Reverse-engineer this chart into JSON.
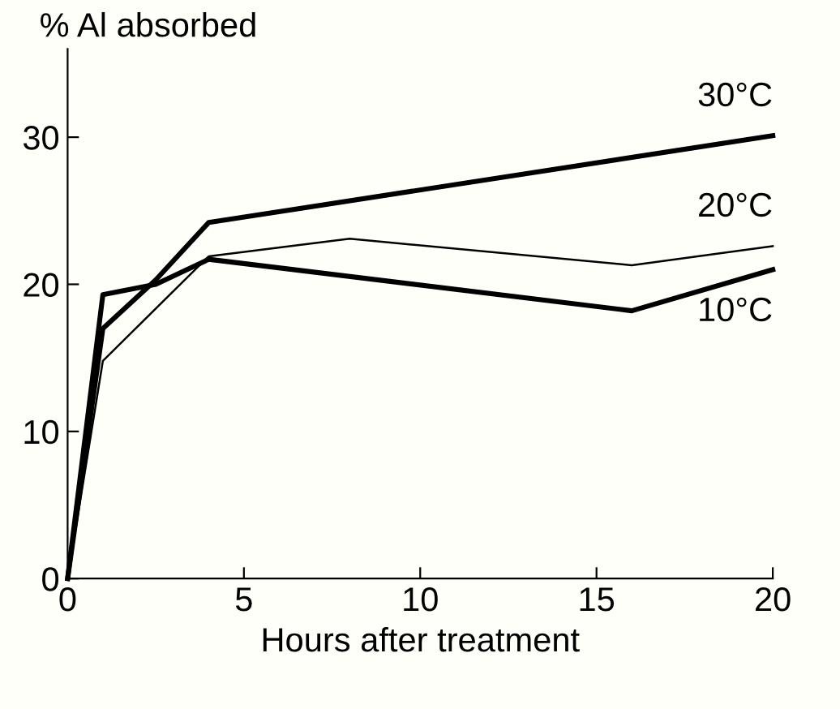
{
  "chart_data": {
    "type": "line",
    "xlabel": "Hours after treatment",
    "ylabel": "% Al absorbed",
    "xlim": [
      0,
      20
    ],
    "ylim": [
      0,
      36
    ],
    "xticks": [
      0,
      5,
      10,
      15,
      20
    ],
    "yticks": [
      0,
      10,
      20,
      30
    ],
    "grid": false,
    "legend": false,
    "marker": "none",
    "line_style": "solid",
    "series": [
      {
        "name": "30°C",
        "color": "#000000",
        "x": [
          0,
          1,
          2.5,
          4,
          20
        ],
        "values": [
          0,
          17,
          20.3,
          24.2,
          30.1
        ]
      },
      {
        "name": "20°C",
        "color": "#000000",
        "x": [
          0,
          1,
          4,
          8,
          16,
          20
        ],
        "values": [
          0,
          14.8,
          21.9,
          23.1,
          21.3,
          22.6
        ]
      },
      {
        "name": "10°C",
        "color": "#000000",
        "x": [
          0,
          1,
          2.5,
          4,
          16,
          20
        ],
        "values": [
          0,
          19.3,
          20,
          21.7,
          18.2,
          21.0
        ]
      }
    ]
  }
}
